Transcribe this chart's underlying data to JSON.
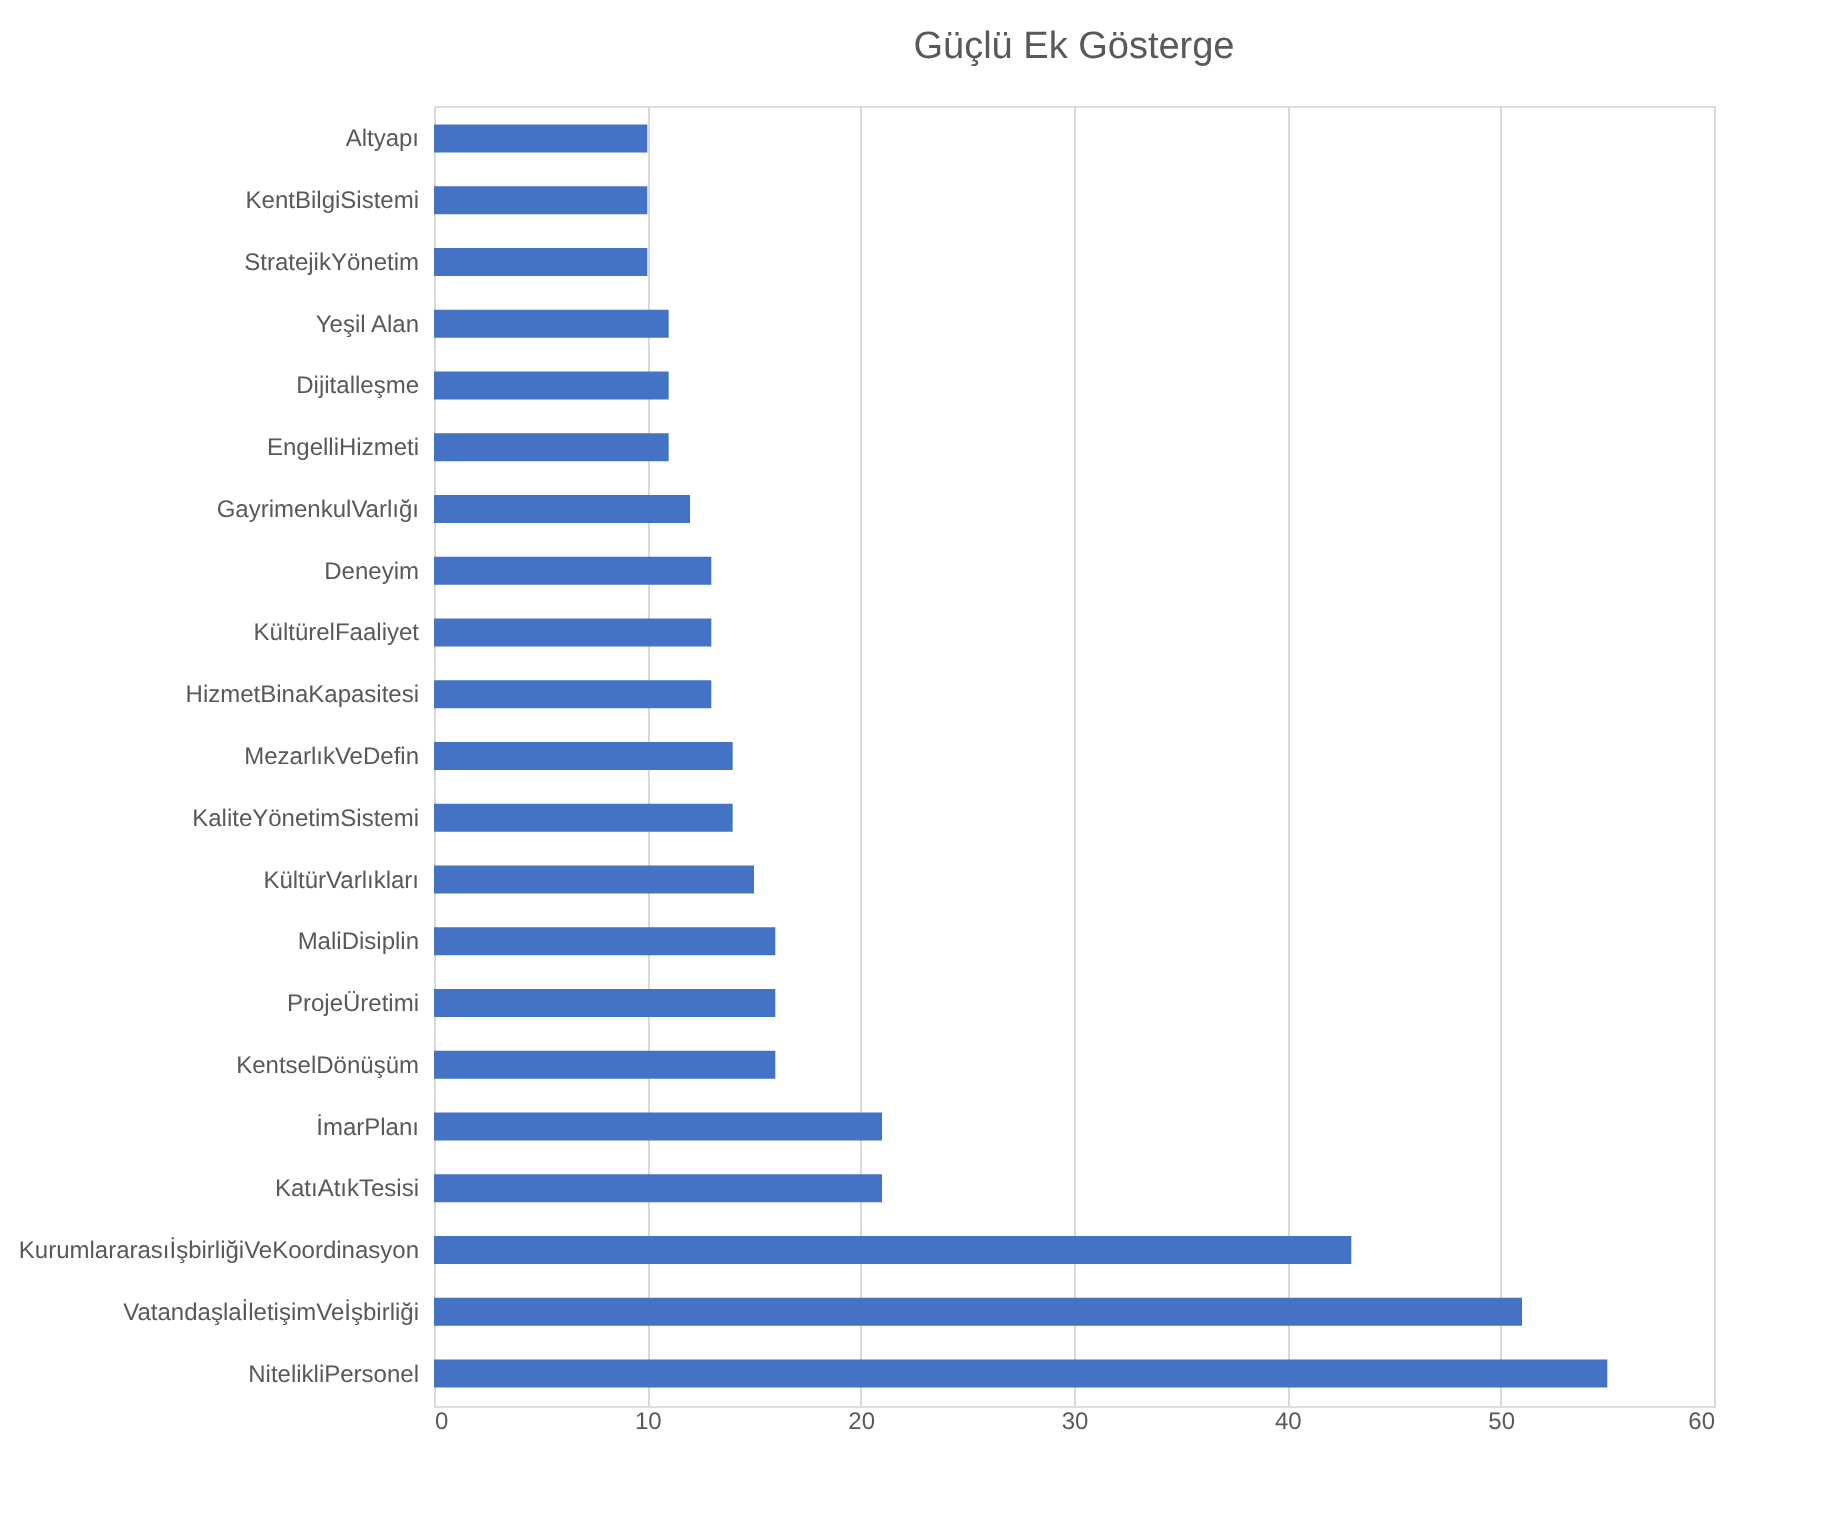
{
  "chart_data": {
    "type": "bar",
    "orientation": "horizontal",
    "title": "Güçlü Ek Gösterge",
    "categories": [
      "Altyapı",
      "KentBilgiSistemi",
      "StratejikYönetim",
      "Yeşil Alan",
      "Dijitalleşme",
      "EngelliHizmeti",
      "GayrimenkulVarlığı",
      "Deneyim",
      "KültürelFaaliyet",
      "HizmetBinaKapasitesi",
      "MezarlıkVeDefin",
      "KaliteYönetimSistemi",
      "KültürVarlıkları",
      "MaliDisiplin",
      "ProjeÜretimi",
      "KentselDönüşüm",
      "İmarPlanı",
      "KatıAtıkTesisi",
      "KurumlararasıİşbirliğiVeKoordinasyon",
      "VatandaşlaİletişimVeİşbirliği",
      "NitelikliPersonel"
    ],
    "values": [
      10,
      10,
      10,
      11,
      11,
      11,
      12,
      13,
      13,
      13,
      14,
      14,
      15,
      16,
      16,
      16,
      21,
      21,
      43,
      51,
      55
    ],
    "color": "#4472c4",
    "xlim": [
      0,
      60
    ],
    "xticks": [
      0,
      10,
      20,
      30,
      40,
      50,
      60
    ],
    "grid": "x"
  }
}
